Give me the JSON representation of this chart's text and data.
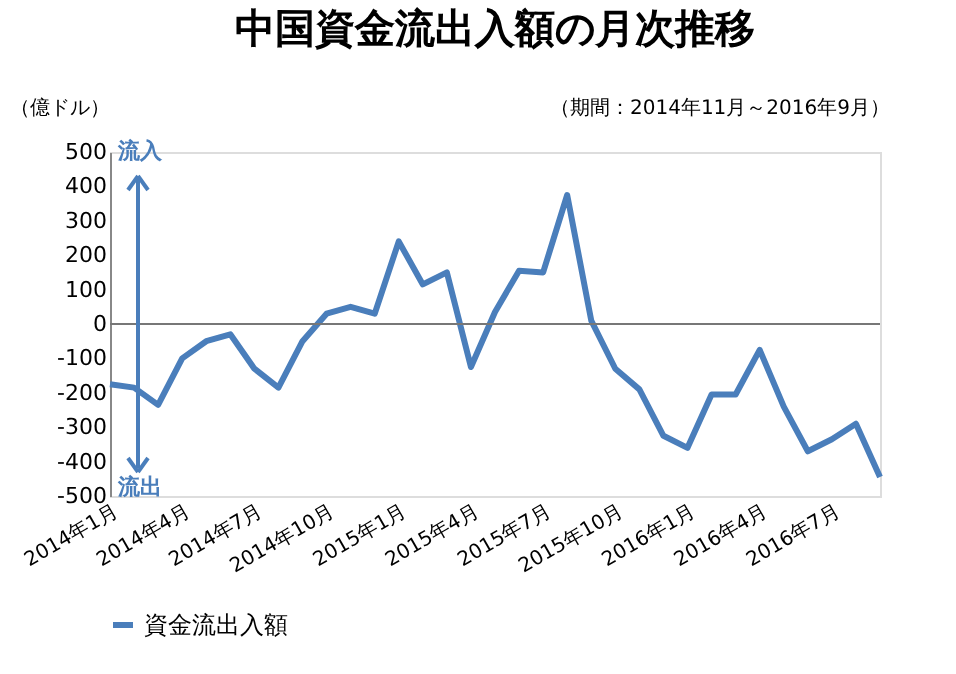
{
  "chart_data": {
    "type": "line",
    "title": "中国資金流出入額の月次推移",
    "subtitle": "（期間：2014年11月～2016年9月）",
    "ylabel": "（億ドル）",
    "categories": [
      "2014年1月",
      null,
      null,
      "2014年4月",
      null,
      null,
      "2014年7月",
      null,
      null,
      "2014年10月",
      null,
      null,
      "2015年1月",
      null,
      null,
      "2015年4月",
      null,
      null,
      "2015年7月",
      null,
      null,
      "2015年10月",
      null,
      null,
      "2016年1月",
      null,
      null,
      "2016年4月",
      null,
      null,
      "2016年7月",
      null,
      null
    ],
    "series": [
      {
        "name": "資金流出入額",
        "color": "#4a7ebb",
        "values": [
          -175,
          -185,
          -235,
          -100,
          -50,
          -30,
          -130,
          -185,
          -50,
          30,
          50,
          30,
          240,
          115,
          150,
          -125,
          35,
          155,
          150,
          375,
          10,
          -130,
          -190,
          -325,
          -360,
          -205,
          -205,
          -75,
          -240,
          -370,
          -335,
          -290,
          -445
        ]
      }
    ],
    "ylim": [
      -500,
      500
    ],
    "yticks": [
      -500,
      -400,
      -300,
      -200,
      -100,
      0,
      100,
      200,
      300,
      400,
      500
    ],
    "annotations": [
      "流入",
      "流出"
    ],
    "legend": "bottom",
    "grid": false
  }
}
